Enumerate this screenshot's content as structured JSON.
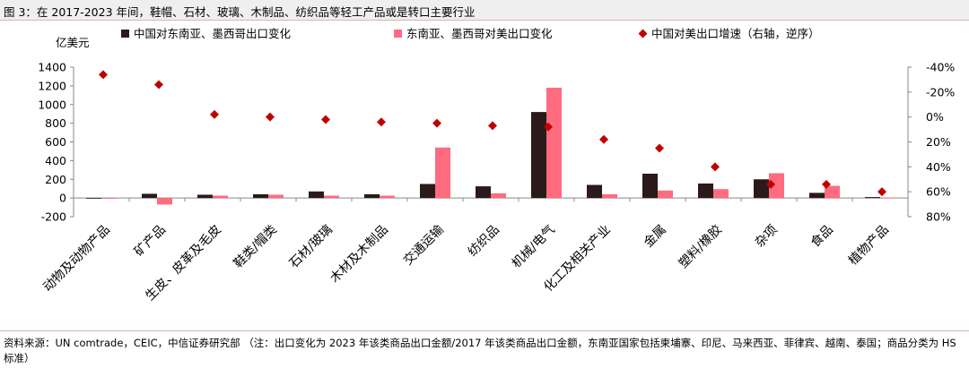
{
  "figure_title": "图 3：在 2017-2023 年间，鞋帽、石材、玻璃、木制品、纺织品等轻工产品或是转口主要行业",
  "source_note": "资料来源：UN comtrade，CEIC，中信证券研究部 （注：出口变化为 2023 年该类商品出口金额/2017 年该类商品出口金额，东南亚国家包括柬埔寨、印尼、马来西亚、菲律宾、越南、泰国；商品分类为 HS 标准）",
  "colors": {
    "china_bar": "#2b1a1a",
    "sea_bar": "#ff6b7f",
    "growth_marker": "#c00000"
  },
  "chart_data": {
    "type": "bar",
    "ylabel_left": "亿美元",
    "y_left": {
      "min": -200,
      "max": 1400,
      "ticks": [
        -200,
        0,
        200,
        400,
        600,
        800,
        1000,
        1200,
        1400
      ]
    },
    "y_right": {
      "min": -40,
      "max": 80,
      "reversed": true,
      "ticks": [
        "-40%",
        "-20%",
        "0%",
        "20%",
        "40%",
        "60%",
        "80%"
      ],
      "tick_values": [
        -40,
        -20,
        0,
        20,
        40,
        60,
        80
      ]
    },
    "categories": [
      "动物及动物产品",
      "矿产品",
      "生皮、皮革及毛皮",
      "鞋类/帽类",
      "石材/玻璃",
      "木材及木制品",
      "交通运输",
      "纺织品",
      "机械/电气",
      "化工及相关产业",
      "金属",
      "塑料/橡胶",
      "杂项",
      "食品",
      "植物产品"
    ],
    "series": [
      {
        "name": "中国对东南亚、墨西哥出口变化",
        "kind": "bar",
        "axis": "left",
        "values": [
          -5,
          45,
          35,
          40,
          70,
          40,
          150,
          125,
          920,
          140,
          260,
          155,
          200,
          55,
          10
        ]
      },
      {
        "name": "东南亚、墨西哥对美出口变化",
        "kind": "bar",
        "axis": "left",
        "values": [
          0,
          -70,
          25,
          35,
          25,
          25,
          540,
          50,
          1180,
          40,
          80,
          95,
          265,
          130,
          3
        ]
      },
      {
        "name": "中国对美出口增速（右轴，逆序）",
        "kind": "marker",
        "axis": "right",
        "values": [
          -34,
          -26,
          -2,
          0,
          2,
          4,
          5,
          7,
          8,
          18,
          25,
          40,
          54,
          54,
          60
        ]
      }
    ]
  }
}
